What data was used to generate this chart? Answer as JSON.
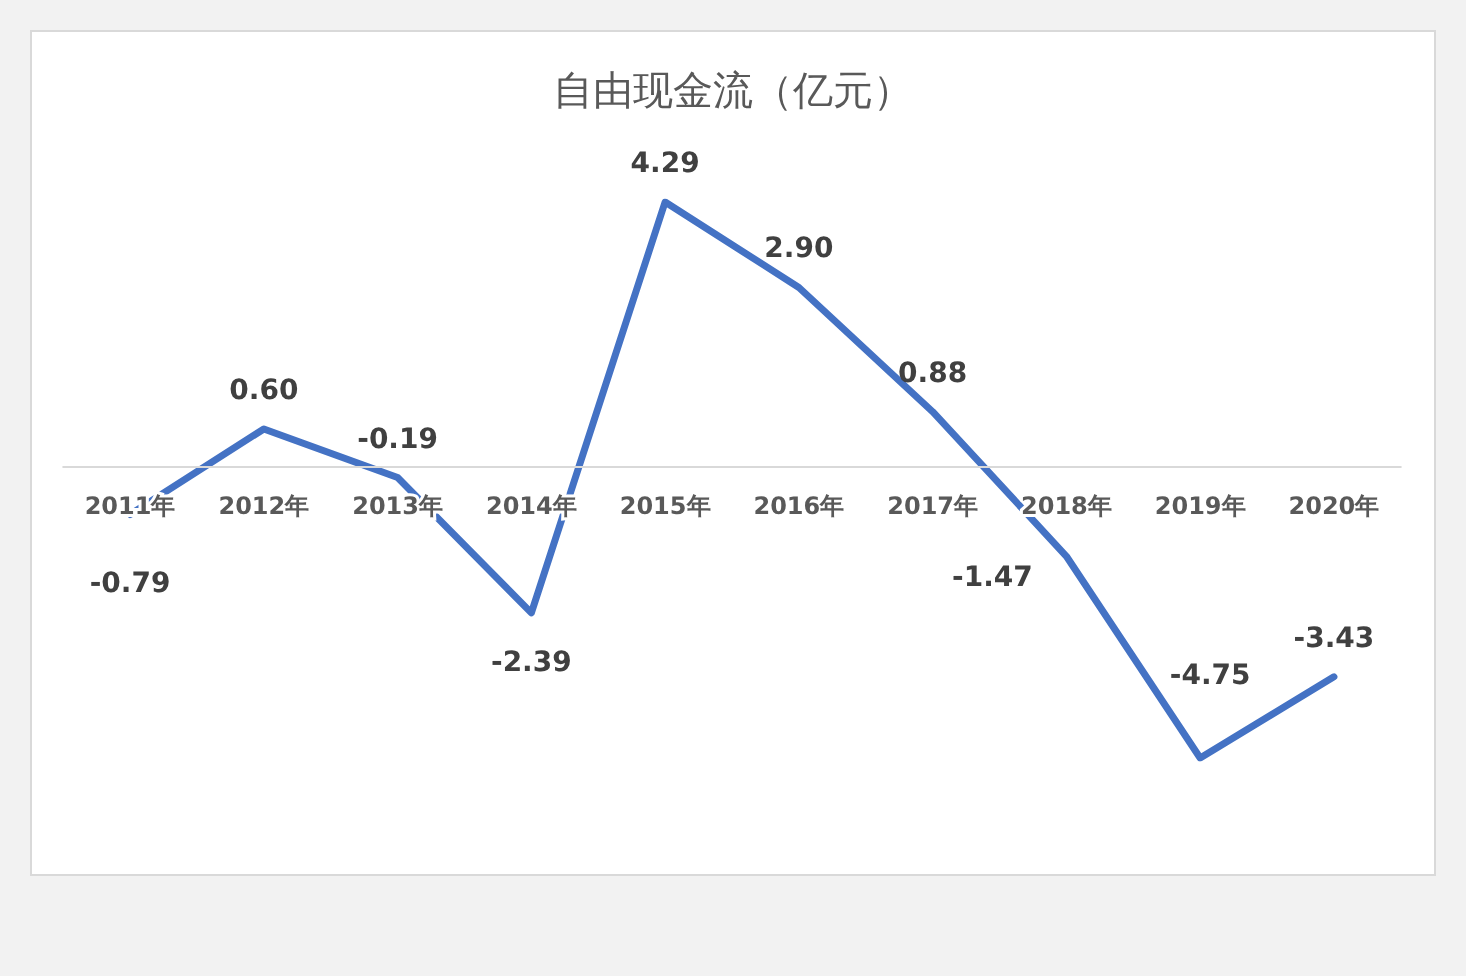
{
  "chart_data": {
    "type": "line",
    "title": "自由现金流（亿元）",
    "categories": [
      "2011年",
      "2012年",
      "2013年",
      "2014年",
      "2015年",
      "2016年",
      "2017年",
      "2018年",
      "2019年",
      "2020年"
    ],
    "series": [
      {
        "color": "#4472c4",
        "values": [
          -0.79,
          0.6,
          -0.19,
          -2.39,
          4.29,
          2.9,
          0.88,
          -1.47,
          -4.75,
          -3.43
        ],
        "value_labels": [
          "-0.79",
          "0.60",
          "-0.19",
          "-2.39",
          "4.29",
          "2.90",
          "0.88",
          "-1.47",
          "-4.75",
          "-3.43"
        ]
      }
    ]
  }
}
